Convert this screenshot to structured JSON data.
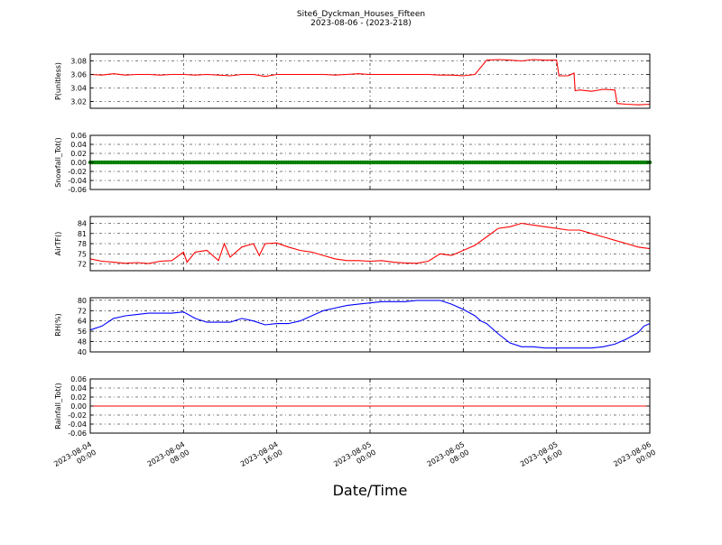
{
  "figure": {
    "title_line1": "Site6_Dyckman_Houses_Fifteen",
    "title_line2": "2023-08-06 - (2023-218)",
    "xlabel": "Date/Time",
    "x_tick_labels": [
      [
        "2023-08-04",
        "00:00"
      ],
      [
        "2023-08-04",
        "08:00"
      ],
      [
        "2023-08-04",
        "16:00"
      ],
      [
        "2023-08-05",
        "00:00"
      ],
      [
        "2023-08-05",
        "08:00"
      ],
      [
        "2023-08-05",
        "16:00"
      ],
      [
        "2023-08-06",
        "00:00"
      ]
    ]
  },
  "chart_data": [
    {
      "type": "line",
      "ylabel": "P(unitless)",
      "color": "#ff0000",
      "ylim": [
        3.01,
        3.09
      ],
      "yticks": [
        3.02,
        3.04,
        3.06,
        3.08
      ],
      "ytick_decimals": 2,
      "grid": true,
      "points": [
        [
          0,
          3.06
        ],
        [
          1,
          3.059
        ],
        [
          2,
          3.061
        ],
        [
          3,
          3.059
        ],
        [
          4,
          3.06
        ],
        [
          5,
          3.06
        ],
        [
          6,
          3.059
        ],
        [
          7,
          3.06
        ],
        [
          8,
          3.06
        ],
        [
          9,
          3.059
        ],
        [
          10,
          3.06
        ],
        [
          11,
          3.059
        ],
        [
          12,
          3.058
        ],
        [
          13,
          3.06
        ],
        [
          14,
          3.06
        ],
        [
          15,
          3.057
        ],
        [
          16,
          3.06
        ],
        [
          17,
          3.06
        ],
        [
          18,
          3.06
        ],
        [
          19,
          3.06
        ],
        [
          20,
          3.06
        ],
        [
          21,
          3.059
        ],
        [
          22,
          3.06
        ],
        [
          23,
          3.061
        ],
        [
          24,
          3.06
        ],
        [
          25,
          3.06
        ],
        [
          26,
          3.06
        ],
        [
          27,
          3.06
        ],
        [
          28,
          3.06
        ],
        [
          29,
          3.06
        ],
        [
          30,
          3.059
        ],
        [
          31,
          3.059
        ],
        [
          32,
          3.058
        ],
        [
          33,
          3.06
        ],
        [
          34,
          3.081
        ],
        [
          35,
          3.082
        ],
        [
          36,
          3.081
        ],
        [
          37,
          3.08
        ],
        [
          38,
          3.082
        ],
        [
          39,
          3.081
        ],
        [
          40,
          3.081
        ],
        [
          40.2,
          3.058
        ],
        [
          41,
          3.058
        ],
        [
          41.5,
          3.062
        ],
        [
          41.6,
          3.036
        ],
        [
          42,
          3.037
        ],
        [
          43,
          3.035
        ],
        [
          44,
          3.038
        ],
        [
          45,
          3.037
        ],
        [
          45.2,
          3.017
        ],
        [
          46,
          3.016
        ],
        [
          47,
          3.015
        ],
        [
          48,
          3.016
        ]
      ]
    },
    {
      "type": "scatter",
      "ylabel": "Snowfall_Tot()",
      "color": "#008000",
      "ylim": [
        -0.06,
        0.06
      ],
      "yticks": [
        -0.06,
        -0.04,
        -0.02,
        0.0,
        0.02,
        0.04,
        0.06
      ],
      "ytick_decimals": 2,
      "grid": true,
      "constant_value": 0.0,
      "x_range": [
        0,
        48
      ]
    },
    {
      "type": "line",
      "ylabel": "AirTF()",
      "color": "#ff0000",
      "ylim": [
        70,
        86
      ],
      "yticks": [
        72,
        75,
        78,
        81,
        84
      ],
      "ytick_decimals": 0,
      "grid": true,
      "points": [
        [
          0,
          73.5
        ],
        [
          1,
          72.8
        ],
        [
          2,
          72.5
        ],
        [
          3,
          72.2
        ],
        [
          4,
          72.4
        ],
        [
          5,
          72.1
        ],
        [
          6,
          72.8
        ],
        [
          7,
          73.0
        ],
        [
          8,
          75.5
        ],
        [
          8.3,
          72.5
        ],
        [
          9,
          75.5
        ],
        [
          10,
          76.0
        ],
        [
          11,
          73.0
        ],
        [
          11.5,
          78.0
        ],
        [
          12,
          74.0
        ],
        [
          13,
          77.0
        ],
        [
          14,
          78.0
        ],
        [
          14.5,
          74.5
        ],
        [
          15,
          78.0
        ],
        [
          16,
          78.2
        ],
        [
          17,
          77.0
        ],
        [
          18,
          76.0
        ],
        [
          19,
          75.5
        ],
        [
          20,
          74.5
        ],
        [
          21,
          73.5
        ],
        [
          22,
          73.0
        ],
        [
          23,
          73.0
        ],
        [
          24,
          72.8
        ],
        [
          25,
          73.0
        ],
        [
          26,
          72.5
        ],
        [
          27,
          72.3
        ],
        [
          28,
          72.2
        ],
        [
          29,
          72.8
        ],
        [
          30,
          75.0
        ],
        [
          31,
          74.5
        ],
        [
          32,
          76.0
        ],
        [
          33,
          77.5
        ],
        [
          34,
          80.0
        ],
        [
          35,
          82.5
        ],
        [
          36,
          83.0
        ],
        [
          37,
          84.0
        ],
        [
          38,
          83.5
        ],
        [
          39,
          83.0
        ],
        [
          40,
          82.5
        ],
        [
          41,
          82.0
        ],
        [
          42,
          82.0
        ],
        [
          43,
          81.0
        ],
        [
          44,
          80.0
        ],
        [
          45,
          79.0
        ],
        [
          46,
          78.0
        ],
        [
          47,
          77.0
        ],
        [
          48,
          76.5
        ]
      ]
    },
    {
      "type": "line",
      "ylabel": "RH(%)",
      "color": "#0000ff",
      "ylim": [
        40,
        82
      ],
      "yticks": [
        40,
        48,
        56,
        64,
        72,
        80
      ],
      "ytick_decimals": 0,
      "grid": true,
      "points": [
        [
          0,
          57
        ],
        [
          1,
          60
        ],
        [
          2,
          66
        ],
        [
          3,
          68
        ],
        [
          4,
          69
        ],
        [
          5,
          70
        ],
        [
          6,
          70
        ],
        [
          7,
          70
        ],
        [
          8,
          71
        ],
        [
          9,
          66
        ],
        [
          10,
          63
        ],
        [
          11,
          63
        ],
        [
          12,
          63
        ],
        [
          13,
          66
        ],
        [
          14,
          64
        ],
        [
          15,
          61
        ],
        [
          16,
          62
        ],
        [
          17,
          62
        ],
        [
          18,
          64
        ],
        [
          19,
          68
        ],
        [
          20,
          72
        ],
        [
          21,
          74
        ],
        [
          22,
          76
        ],
        [
          23,
          77
        ],
        [
          24,
          78
        ],
        [
          25,
          79
        ],
        [
          26,
          79
        ],
        [
          27,
          79
        ],
        [
          28,
          80
        ],
        [
          29,
          80
        ],
        [
          30,
          80
        ],
        [
          31,
          77
        ],
        [
          32,
          73
        ],
        [
          33,
          68
        ],
        [
          33.5,
          64
        ],
        [
          34,
          62
        ],
        [
          35,
          54
        ],
        [
          36,
          47
        ],
        [
          37,
          44
        ],
        [
          38,
          44
        ],
        [
          39,
          43
        ],
        [
          40,
          43
        ],
        [
          41,
          43
        ],
        [
          42,
          43
        ],
        [
          43,
          43
        ],
        [
          44,
          44
        ],
        [
          45,
          46
        ],
        [
          46,
          50
        ],
        [
          47,
          55
        ],
        [
          47.5,
          60
        ],
        [
          48,
          62
        ]
      ]
    },
    {
      "type": "line",
      "ylabel": "Rainfall_Tot()",
      "color": "#ff0000",
      "ylim": [
        -0.06,
        0.06
      ],
      "yticks": [
        -0.06,
        -0.04,
        -0.02,
        0.0,
        0.02,
        0.04,
        0.06
      ],
      "ytick_decimals": 2,
      "grid": true,
      "points": [
        [
          0,
          0.0
        ],
        [
          48,
          0.0
        ]
      ]
    }
  ]
}
